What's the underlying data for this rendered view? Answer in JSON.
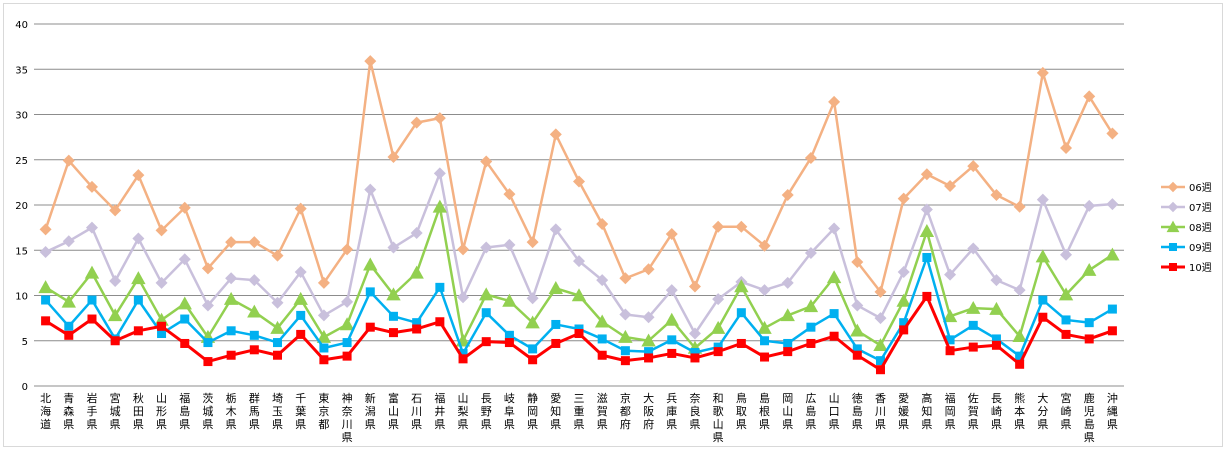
{
  "chart_data": {
    "type": "line",
    "title": "",
    "xlabel": "",
    "ylabel": "",
    "ylim": [
      0,
      40
    ],
    "yticks": [
      0,
      5,
      10,
      15,
      20,
      25,
      30,
      35,
      40
    ],
    "grid": true,
    "legend_position": "right",
    "categories": [
      "北海道",
      "青森県",
      "岩手県",
      "宮城県",
      "秋田県",
      "山形県",
      "福島県",
      "茨城県",
      "栃木県",
      "群馬県",
      "埼玉県",
      "千葉県",
      "東京都",
      "神奈川県",
      "新潟県",
      "富山県",
      "石川県",
      "福井県",
      "山梨県",
      "長野県",
      "岐阜県",
      "静岡県",
      "愛知県",
      "三重県",
      "滋賀県",
      "京都府",
      "大阪府",
      "兵庫県",
      "奈良県",
      "和歌山県",
      "鳥取県",
      "島根県",
      "岡山県",
      "広島県",
      "山口県",
      "徳島県",
      "香川県",
      "愛媛県",
      "高知県",
      "福岡県",
      "佐賀県",
      "長崎県",
      "熊本県",
      "大分県",
      "宮崎県",
      "鹿児島県",
      "沖縄県"
    ],
    "series": [
      {
        "name": "06週",
        "color": "#f4b183",
        "marker": "diamond",
        "values": [
          17.3,
          24.9,
          22.0,
          19.4,
          23.3,
          17.2,
          19.7,
          13.0,
          15.9,
          15.9,
          14.4,
          19.6,
          11.4,
          15.1,
          35.9,
          25.3,
          29.1,
          29.6,
          15.1,
          24.8,
          21.2,
          15.9,
          27.8,
          22.6,
          17.9,
          11.9,
          12.9,
          16.8,
          11.0,
          17.6,
          17.6,
          15.5,
          21.1,
          25.2,
          31.4,
          13.7,
          10.4,
          20.7,
          23.4,
          22.1,
          24.3,
          21.1,
          19.8,
          34.6,
          26.3,
          32.0,
          27.9
        ]
      },
      {
        "name": "07週",
        "color": "#c9c0dc",
        "marker": "diamond",
        "values": [
          14.8,
          16.0,
          17.5,
          11.6,
          16.3,
          11.4,
          14.0,
          8.9,
          11.9,
          11.7,
          9.2,
          12.6,
          7.8,
          9.3,
          21.7,
          15.3,
          16.9,
          23.5,
          9.8,
          15.3,
          15.6,
          9.7,
          17.3,
          13.8,
          11.7,
          7.9,
          7.6,
          10.6,
          5.8,
          9.6,
          11.5,
          10.6,
          11.4,
          14.7,
          17.4,
          8.9,
          7.5,
          12.6,
          19.5,
          12.3,
          15.2,
          11.7,
          10.6,
          20.6,
          14.5,
          19.9,
          20.1
        ]
      },
      {
        "name": "08週",
        "color": "#92d050",
        "marker": "triangle",
        "values": [
          10.9,
          9.3,
          12.5,
          7.8,
          11.9,
          7.3,
          9.1,
          5.4,
          9.6,
          8.2,
          6.4,
          9.6,
          5.4,
          6.8,
          13.4,
          10.1,
          12.5,
          19.8,
          5.0,
          10.1,
          9.4,
          7.0,
          10.8,
          10.0,
          7.1,
          5.4,
          5.0,
          7.3,
          4.2,
          6.4,
          11.0,
          6.4,
          7.8,
          8.8,
          12.0,
          6.1,
          4.5,
          9.4,
          17.1,
          7.7,
          8.6,
          8.5,
          5.5,
          14.3,
          10.1,
          12.8,
          14.5
        ]
      },
      {
        "name": "09週",
        "color": "#00b0f0",
        "marker": "square",
        "values": [
          9.5,
          6.6,
          9.5,
          5.2,
          9.5,
          5.8,
          7.4,
          4.8,
          6.1,
          5.6,
          4.8,
          7.8,
          4.2,
          4.8,
          10.4,
          7.7,
          7.0,
          10.9,
          3.6,
          8.1,
          5.6,
          4.1,
          6.8,
          6.3,
          5.2,
          3.9,
          3.8,
          5.1,
          3.7,
          4.3,
          8.1,
          5.0,
          4.7,
          6.5,
          8.0,
          4.1,
          2.8,
          7.0,
          14.2,
          5.1,
          6.7,
          5.2,
          3.3,
          9.5,
          7.3,
          7.0,
          8.5
        ]
      },
      {
        "name": "10週",
        "color": "#ff0000",
        "marker": "square",
        "values": [
          7.2,
          5.6,
          7.4,
          5.0,
          6.1,
          6.6,
          4.7,
          2.7,
          3.4,
          4.0,
          3.4,
          5.7,
          2.9,
          3.3,
          6.5,
          5.9,
          6.3,
          7.1,
          3.0,
          4.9,
          4.8,
          2.9,
          4.7,
          5.8,
          3.4,
          2.8,
          3.1,
          3.6,
          3.1,
          3.8,
          4.7,
          3.2,
          3.8,
          4.7,
          5.5,
          3.4,
          1.8,
          6.2,
          9.9,
          3.9,
          4.3,
          4.5,
          2.4,
          7.6,
          5.7,
          5.2,
          6.1
        ]
      }
    ]
  }
}
